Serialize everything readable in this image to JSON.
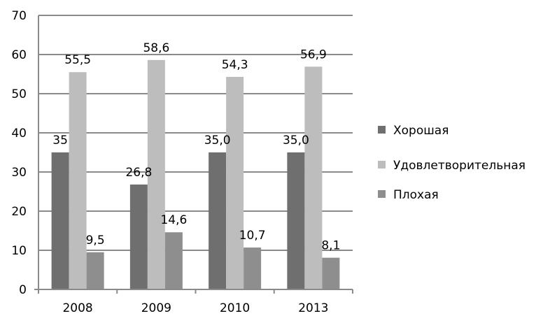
{
  "chart_data": {
    "type": "bar",
    "categories": [
      "2008",
      "2009",
      "2010",
      "2013"
    ],
    "series": [
      {
        "name": "Хорошая",
        "values": [
          35,
          26.8,
          35.0,
          35.0
        ],
        "labels": [
          "35",
          "26,8",
          "35,0",
          "35,0"
        ],
        "color": "#6f6f6f"
      },
      {
        "name": "Удовлетворительная",
        "values": [
          55.5,
          58.6,
          54.3,
          56.9
        ],
        "labels": [
          "55,5",
          "58,6",
          "54,3",
          "56,9"
        ],
        "color": "#bdbdbd"
      },
      {
        "name": "Плохая",
        "values": [
          9.5,
          14.6,
          10.7,
          8.1
        ],
        "labels": [
          "9,5",
          "14,6",
          "10,7",
          "8,1"
        ],
        "color": "#8e8e8e"
      }
    ],
    "yticks": [
      "0",
      "10",
      "20",
      "30",
      "40",
      "50",
      "60",
      "70"
    ],
    "ylim": [
      0,
      70
    ],
    "grid": true,
    "legend": "right",
    "title": "",
    "xlabel": "",
    "ylabel": ""
  }
}
